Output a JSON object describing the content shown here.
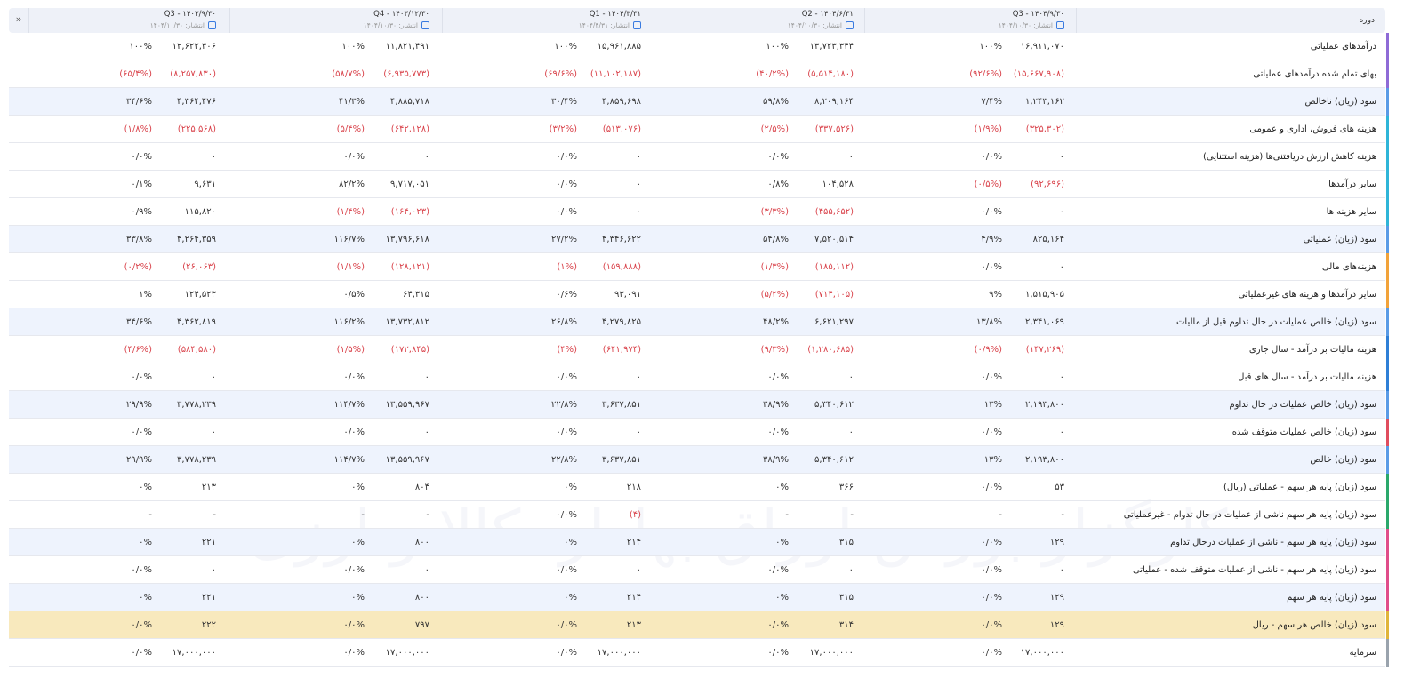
{
  "watermark": "کارگزار بورس اوراق بهادار، کالا و ارزی",
  "header": {
    "label": "دوره",
    "periods": [
      {
        "title": "Q3 - ۱۴۰۴/۹/۳۰",
        "published": "انتشار: ۱۴۰۴/۱۰/۳۰"
      },
      {
        "title": "Q2 - ۱۴۰۴/۶/۳۱",
        "published": "انتشار: ۱۴۰۴/۱۰/۳۰"
      },
      {
        "title": "Q1 - ۱۴۰۴/۳/۳۱",
        "published": "انتشار: ۱۴۰۴/۴/۳۱"
      },
      {
        "title": "Q4 - ۱۴۰۳/۱۲/۳۰",
        "published": "انتشار: ۱۴۰۴/۱۰/۳۰"
      },
      {
        "title": "Q3 - ۱۴۰۳/۹/۳۰",
        "published": "انتشار: ۱۴۰۴/۱۰/۳۰"
      }
    ]
  },
  "rows": [
    {
      "label": "درآمدهای عملیاتی",
      "cells": [
        [
          "۱۶,۹۱۱,۰۷۰",
          "۱۰۰%"
        ],
        [
          "۱۳,۷۲۳,۳۴۴",
          "۱۰۰%"
        ],
        [
          "۱۵,۹۶۱,۸۸۵",
          "۱۰۰%"
        ],
        [
          "۱۱,۸۲۱,۴۹۱",
          "۱۰۰%"
        ],
        [
          "۱۲,۶۲۲,۳۰۶",
          "۱۰۰%"
        ]
      ]
    },
    {
      "label": "بهای تمام شده درآمدهای عملیاتی",
      "cells": [
        [
          "(۱۵,۶۶۷,۹۰۸)",
          "(۹۲/۶%)"
        ],
        [
          "(۵,۵۱۴,۱۸۰)",
          "(۴۰/۲%)"
        ],
        [
          "(۱۱,۱۰۲,۱۸۷)",
          "(۶۹/۶%)"
        ],
        [
          "(۶,۹۳۵,۷۷۳)",
          "(۵۸/۷%)"
        ],
        [
          "(۸,۲۵۷,۸۳۰)",
          "(۶۵/۴%)"
        ]
      ]
    },
    {
      "label": "سود (زیان) ناخالص",
      "cells": [
        [
          "۱,۲۴۳,۱۶۲",
          "۷/۴%"
        ],
        [
          "۸,۲۰۹,۱۶۴",
          "۵۹/۸%"
        ],
        [
          "۴,۸۵۹,۶۹۸",
          "۳۰/۴%"
        ],
        [
          "۴,۸۸۵,۷۱۸",
          "۴۱/۳%"
        ],
        [
          "۴,۳۶۴,۴۷۶",
          "۳۴/۶%"
        ]
      ]
    },
    {
      "label": "هزینه های فروش، اداری و عمومی",
      "cells": [
        [
          "(۳۲۵,۳۰۲)",
          "(۱/۹%)"
        ],
        [
          "(۳۳۷,۵۲۶)",
          "(۲/۵%)"
        ],
        [
          "(۵۱۳,۰۷۶)",
          "(۳/۲%)"
        ],
        [
          "(۶۴۲,۱۲۸)",
          "(۵/۴%)"
        ],
        [
          "(۲۲۵,۵۶۸)",
          "(۱/۸%)"
        ]
      ]
    },
    {
      "label": "هزینه کاهش ارزش دریافتنی‌ها (هزینه استثنایی)",
      "cells": [
        [
          "۰",
          "۰/۰%"
        ],
        [
          "۰",
          "۰/۰%"
        ],
        [
          "۰",
          "۰/۰%"
        ],
        [
          "۰",
          "۰/۰%"
        ],
        [
          "۰",
          "۰/۰%"
        ]
      ]
    },
    {
      "label": "سایر درآمدها",
      "cells": [
        [
          "(۹۲,۶۹۶)",
          "(۰/۵%)"
        ],
        [
          "۱۰۴,۵۲۸",
          "۰/۸%"
        ],
        [
          "۰",
          "۰/۰%"
        ],
        [
          "۹,۷۱۷,۰۵۱",
          "۸۲/۲%"
        ],
        [
          "۹,۶۳۱",
          "۰/۱%"
        ]
      ]
    },
    {
      "label": "سایر هزینه ها",
      "cells": [
        [
          "۰",
          "۰/۰%"
        ],
        [
          "(۴۵۵,۶۵۲)",
          "(۳/۳%)"
        ],
        [
          "۰",
          "۰/۰%"
        ],
        [
          "(۱۶۴,۰۲۳)",
          "(۱/۴%)"
        ],
        [
          "۱۱۵,۸۲۰",
          "۰/۹%"
        ]
      ]
    },
    {
      "label": "سود (زیان) عملیاتی",
      "cells": [
        [
          "۸۲۵,۱۶۴",
          "۴/۹%"
        ],
        [
          "۷,۵۲۰,۵۱۴",
          "۵۴/۸%"
        ],
        [
          "۴,۳۴۶,۶۲۲",
          "۲۷/۲%"
        ],
        [
          "۱۳,۷۹۶,۶۱۸",
          "۱۱۶/۷%"
        ],
        [
          "۴,۲۶۴,۳۵۹",
          "۳۳/۸%"
        ]
      ]
    },
    {
      "label": "هزینه‌های مالی",
      "cells": [
        [
          "۰",
          "۰/۰%"
        ],
        [
          "(۱۸۵,۱۱۲)",
          "(۱/۳%)"
        ],
        [
          "(۱۵۹,۸۸۸)",
          "(۱%)"
        ],
        [
          "(۱۲۸,۱۲۱)",
          "(۱/۱%)"
        ],
        [
          "(۲۶,۰۶۳)",
          "(۰/۲%)"
        ]
      ]
    },
    {
      "label": "سایر درآمدها و هزینه های غیرعملیاتی",
      "cells": [
        [
          "۱,۵۱۵,۹۰۵",
          "۹%"
        ],
        [
          "(۷۱۴,۱۰۵)",
          "(۵/۲%)"
        ],
        [
          "۹۳,۰۹۱",
          "۰/۶%"
        ],
        [
          "۶۴,۳۱۵",
          "۰/۵%"
        ],
        [
          "۱۲۴,۵۲۳",
          "۱%"
        ]
      ]
    },
    {
      "label": "سود (زیان) خالص عملیات در حال تداوم قبل از مالیات",
      "cells": [
        [
          "۲,۳۴۱,۰۶۹",
          "۱۳/۸%"
        ],
        [
          "۶,۶۲۱,۲۹۷",
          "۴۸/۲%"
        ],
        [
          "۴,۲۷۹,۸۲۵",
          "۲۶/۸%"
        ],
        [
          "۱۳,۷۳۲,۸۱۲",
          "۱۱۶/۲%"
        ],
        [
          "۴,۳۶۲,۸۱۹",
          "۳۴/۶%"
        ]
      ]
    },
    {
      "label": "هزینه مالیات بر درآمد - سال جاری",
      "cells": [
        [
          "(۱۴۷,۲۶۹)",
          "(۰/۹%)"
        ],
        [
          "(۱,۲۸۰,۶۸۵)",
          "(۹/۳%)"
        ],
        [
          "(۶۴۱,۹۷۴)",
          "(۴%)"
        ],
        [
          "(۱۷۲,۸۴۵)",
          "(۱/۵%)"
        ],
        [
          "(۵۸۴,۵۸۰)",
          "(۴/۶%)"
        ]
      ]
    },
    {
      "label": "هزینه مالیات بر درآمد - سال های قبل",
      "cells": [
        [
          "۰",
          "۰/۰%"
        ],
        [
          "۰",
          "۰/۰%"
        ],
        [
          "۰",
          "۰/۰%"
        ],
        [
          "۰",
          "۰/۰%"
        ],
        [
          "۰",
          "۰/۰%"
        ]
      ]
    },
    {
      "label": "سود (زیان) خالص عملیات در حال تداوم",
      "cells": [
        [
          "۲,۱۹۳,۸۰۰",
          "۱۳%"
        ],
        [
          "۵,۳۴۰,۶۱۲",
          "۳۸/۹%"
        ],
        [
          "۳,۶۳۷,۸۵۱",
          "۲۲/۸%"
        ],
        [
          "۱۳,۵۵۹,۹۶۷",
          "۱۱۴/۷%"
        ],
        [
          "۳,۷۷۸,۲۳۹",
          "۲۹/۹%"
        ]
      ]
    },
    {
      "label": "سود (زیان) خالص عملیات متوقف شده",
      "cells": [
        [
          "۰",
          "۰/۰%"
        ],
        [
          "۰",
          "۰/۰%"
        ],
        [
          "۰",
          "۰/۰%"
        ],
        [
          "۰",
          "۰/۰%"
        ],
        [
          "۰",
          "۰/۰%"
        ]
      ]
    },
    {
      "label": "سود (زیان) خالص",
      "cells": [
        [
          "۲,۱۹۳,۸۰۰",
          "۱۳%"
        ],
        [
          "۵,۳۴۰,۶۱۲",
          "۳۸/۹%"
        ],
        [
          "۳,۶۳۷,۸۵۱",
          "۲۲/۸%"
        ],
        [
          "۱۳,۵۵۹,۹۶۷",
          "۱۱۴/۷%"
        ],
        [
          "۳,۷۷۸,۲۳۹",
          "۲۹/۹%"
        ]
      ]
    },
    {
      "label": "سود (زیان) پایه هر سهم - عملیاتی (ریال)",
      "cells": [
        [
          "۵۳",
          "۰/۰%"
        ],
        [
          "۳۶۶",
          "۰%"
        ],
        [
          "۲۱۸",
          "۰%"
        ],
        [
          "۸۰۴",
          "۰%"
        ],
        [
          "۲۱۳",
          "۰%"
        ]
      ]
    },
    {
      "label": "سود (زیان) پایه هر سهم ناشی از عملیات در حال تدوام - غیرعملیاتی",
      "cells": [
        [
          "-",
          "-"
        ],
        [
          "-",
          "-"
        ],
        [
          "(۴)",
          "۰/۰%"
        ],
        [
          "-",
          "-"
        ],
        [
          "-",
          "-"
        ]
      ]
    },
    {
      "label": "سود (زیان) پایه هر سهم - ناشی از عملیات درحال تداوم",
      "cells": [
        [
          "۱۲۹",
          "۰/۰%"
        ],
        [
          "۳۱۵",
          "۰%"
        ],
        [
          "۲۱۴",
          "۰%"
        ],
        [
          "۸۰۰",
          "۰%"
        ],
        [
          "۲۲۱",
          "۰%"
        ]
      ]
    },
    {
      "label": "سود (زیان) پایه هر سهم - ناشی از عملیات متوقف شده - عملیاتی",
      "cells": [
        [
          "۰",
          "۰/۰%"
        ],
        [
          "۰",
          "۰/۰%"
        ],
        [
          "۰",
          "۰/۰%"
        ],
        [
          "۰",
          "۰/۰%"
        ],
        [
          "۰",
          "۰/۰%"
        ]
      ]
    },
    {
      "label": "سود (زیان) پایه هر سهم",
      "cells": [
        [
          "۱۲۹",
          "۰/۰%"
        ],
        [
          "۳۱۵",
          "۰%"
        ],
        [
          "۲۱۴",
          "۰%"
        ],
        [
          "۸۰۰",
          "۰%"
        ],
        [
          "۲۲۱",
          "۰%"
        ]
      ]
    },
    {
      "label": "سود (زیان) خالص هر سهم - ریال",
      "cells": [
        [
          "۱۲۹",
          "۰/۰%"
        ],
        [
          "۳۱۴",
          "۰/۰%"
        ],
        [
          "۲۱۳",
          "۰/۰%"
        ],
        [
          "۷۹۷",
          "۰/۰%"
        ],
        [
          "۲۲۲",
          "۰/۰%"
        ]
      ]
    },
    {
      "label": "سرمایه",
      "cells": [
        [
          "۱۷,۰۰۰,۰۰۰",
          "۰/۰%"
        ],
        [
          "۱۷,۰۰۰,۰۰۰",
          "۰/۰%"
        ],
        [
          "۱۷,۰۰۰,۰۰۰",
          "۰/۰%"
        ],
        [
          "۱۷,۰۰۰,۰۰۰",
          "۰/۰%"
        ],
        [
          "۱۷,۰۰۰,۰۰۰",
          "۰/۰%"
        ]
      ]
    }
  ]
}
